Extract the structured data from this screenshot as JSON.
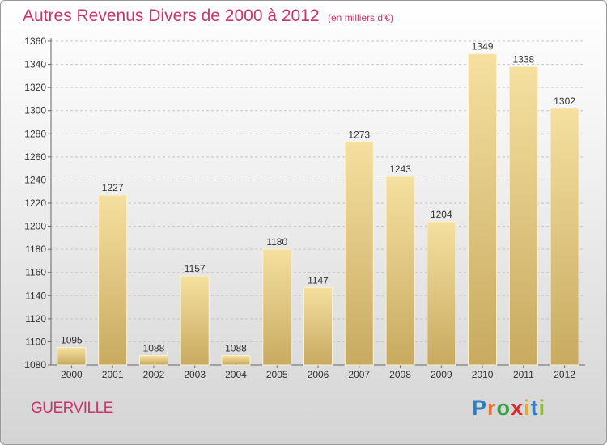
{
  "header": {
    "title": "Autres Revenus Divers de 2000 à 2012",
    "unit_note": "(en milliers d'€)"
  },
  "footer": {
    "city": "GUERVILLE",
    "brand": "Proxiti"
  },
  "colors": {
    "title": "#c9346d",
    "bar_light": "#f5e0a0",
    "bar_dark": "#c8aa60",
    "brand_letters": [
      "#2e7fc2",
      "#e8743b",
      "#3aa04a",
      "#d9292e",
      "#f0a81c",
      "#2e7fc2",
      "#8dbd3a"
    ]
  },
  "chart_data": {
    "type": "bar",
    "categories": [
      "2000",
      "2001",
      "2002",
      "2003",
      "2004",
      "2005",
      "2006",
      "2007",
      "2008",
      "2009",
      "2010",
      "2011",
      "2012"
    ],
    "values": [
      1095,
      1227,
      1088,
      1157,
      1088,
      1180,
      1147,
      1273,
      1243,
      1204,
      1349,
      1338,
      1302
    ],
    "ylim": [
      1080,
      1360
    ],
    "yticks": [
      1080,
      1100,
      1120,
      1140,
      1160,
      1180,
      1200,
      1220,
      1240,
      1260,
      1280,
      1300,
      1320,
      1340,
      1360
    ],
    "grid": "horizontal dashed",
    "data_labels": true
  }
}
